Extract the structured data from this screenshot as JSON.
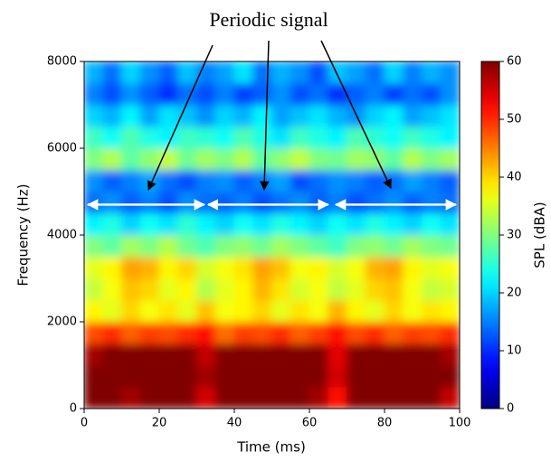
{
  "chart_data": {
    "type": "heatmap",
    "annotation": "Periodic signal",
    "xlabel": "Time (ms)",
    "ylabel": "Frequency (Hz)",
    "colorbar_label": "SPL (dBA)",
    "colormap": "jet",
    "xlim": [
      0,
      100
    ],
    "ylim": [
      0,
      8000
    ],
    "xticks": [
      0,
      20,
      40,
      60,
      80,
      100
    ],
    "yticks": [
      0,
      2000,
      4000,
      6000,
      8000
    ],
    "zlim": [
      0,
      60
    ],
    "zticks": [
      0,
      10,
      20,
      30,
      40,
      50,
      60
    ],
    "arrows": [
      {
        "x0": 1,
        "x1": 32,
        "y": 4700
      },
      {
        "x0": 33,
        "x1": 65,
        "y": 4700
      },
      {
        "x0": 67,
        "x1": 99,
        "y": 4700
      }
    ],
    "z": [
      [
        60,
        60,
        58,
        60,
        60,
        60,
        55,
        60,
        60,
        60,
        60,
        60,
        58,
        52,
        60,
        60,
        60,
        60,
        60,
        56
      ],
      [
        60,
        60,
        60,
        60,
        60,
        60,
        58,
        60,
        60,
        60,
        60,
        60,
        60,
        55,
        60,
        60,
        60,
        60,
        60,
        60
      ],
      [
        58,
        60,
        60,
        60,
        60,
        60,
        56,
        60,
        60,
        60,
        60,
        60,
        60,
        54,
        60,
        60,
        60,
        60,
        60,
        58
      ],
      [
        48,
        50,
        47,
        49,
        48,
        50,
        52,
        46,
        49,
        48,
        50,
        47,
        49,
        52,
        48,
        50,
        47,
        49,
        48,
        50
      ],
      [
        38,
        36,
        40,
        37,
        39,
        36,
        41,
        37,
        38,
        40,
        36,
        39,
        37,
        42,
        38,
        36,
        40,
        37,
        39,
        38
      ],
      [
        34,
        37,
        41,
        40,
        36,
        38,
        33,
        36,
        38,
        42,
        39,
        35,
        37,
        34,
        36,
        40,
        41,
        37,
        34,
        35
      ],
      [
        36,
        38,
        43,
        42,
        38,
        40,
        35,
        37,
        39,
        43,
        41,
        37,
        38,
        35,
        37,
        42,
        43,
        38,
        36,
        37
      ],
      [
        30,
        28,
        32,
        30,
        33,
        29,
        27,
        30,
        31,
        29,
        32,
        30,
        28,
        26,
        30,
        31,
        29,
        32,
        30,
        29
      ],
      [
        22,
        24,
        20,
        23,
        21,
        25,
        22,
        20,
        23,
        21,
        24,
        22,
        20,
        23,
        21,
        24,
        22,
        20,
        23,
        21
      ],
      [
        14,
        16,
        13,
        15,
        12,
        16,
        14,
        13,
        15,
        12,
        14,
        16,
        13,
        15,
        12,
        14,
        16,
        13,
        15,
        14
      ],
      [
        16,
        13,
        15,
        17,
        14,
        12,
        15,
        16,
        13,
        15,
        17,
        12,
        14,
        16,
        15,
        13,
        14,
        17,
        15,
        13
      ],
      [
        30,
        33,
        28,
        31,
        34,
        29,
        32,
        30,
        33,
        28,
        31,
        34,
        30,
        29,
        32,
        31,
        28,
        33,
        30,
        32
      ],
      [
        26,
        23,
        27,
        24,
        22,
        26,
        25,
        23,
        27,
        24,
        21,
        26,
        24,
        22,
        27,
        25,
        23,
        26,
        24,
        22
      ],
      [
        20,
        18,
        22,
        17,
        21,
        19,
        16,
        20,
        18,
        22,
        17,
        19,
        21,
        18,
        16,
        20,
        22,
        17,
        19,
        21
      ],
      [
        15,
        12,
        16,
        13,
        10,
        14,
        12,
        15,
        11,
        13,
        16,
        12,
        14,
        10,
        13,
        15,
        11,
        14,
        12,
        16
      ],
      [
        18,
        14,
        20,
        16,
        13,
        19,
        15,
        17,
        21,
        14,
        18,
        16,
        12,
        19,
        17,
        14,
        20,
        15,
        18,
        16
      ]
    ]
  }
}
